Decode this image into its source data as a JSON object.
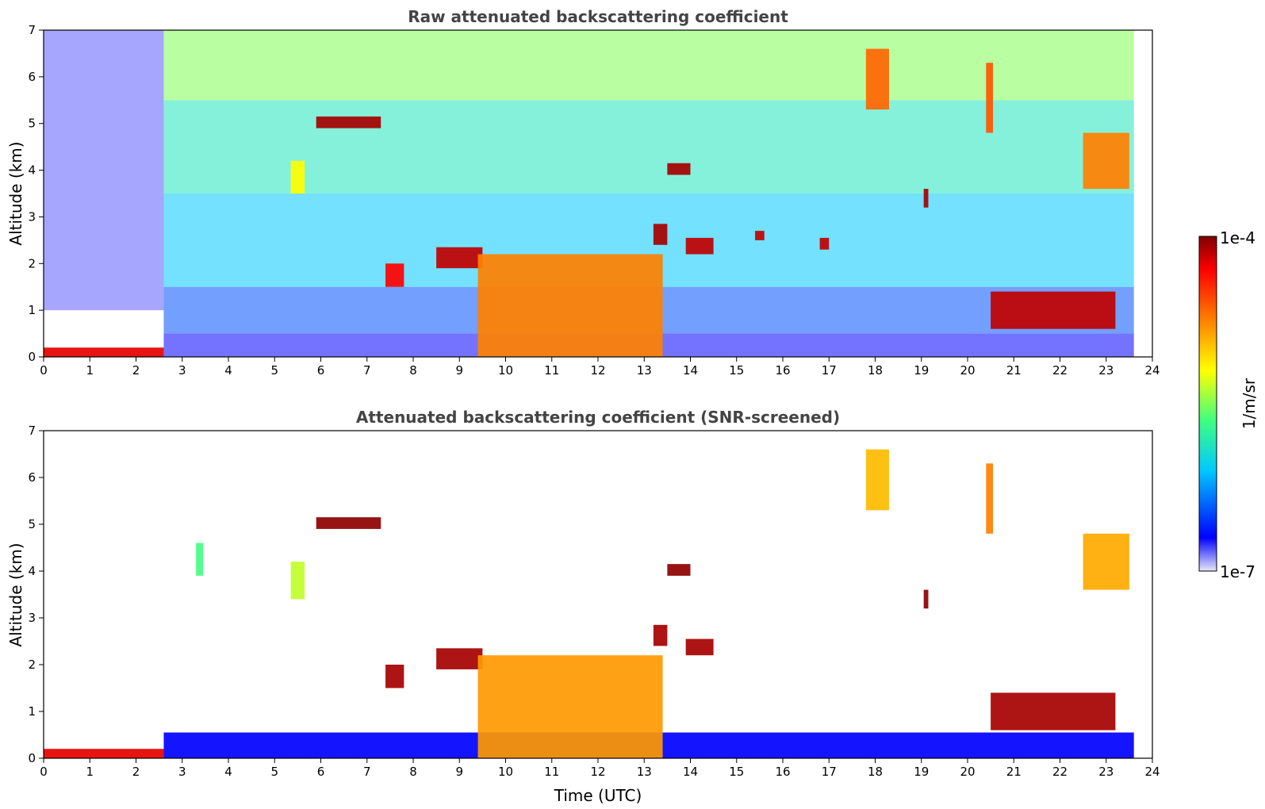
{
  "chart_data": [
    {
      "type": "heatmap",
      "title": "Raw attenuated backscattering coefficient",
      "xlabel": "",
      "ylabel": "Altitude (km)",
      "xlim": [
        0,
        24
      ],
      "ylim": [
        0,
        7
      ],
      "x_ticks": [
        0,
        1,
        2,
        3,
        4,
        5,
        6,
        7,
        8,
        9,
        10,
        11,
        12,
        13,
        14,
        15,
        16,
        17,
        18,
        19,
        20,
        21,
        22,
        23,
        24
      ],
      "y_ticks": [
        0,
        1,
        2,
        3,
        4,
        5,
        6,
        7
      ],
      "features": [
        {
          "t0": 0.0,
          "t1": 2.6,
          "z0": 0.0,
          "z1": 0.2,
          "level": 0.92
        },
        {
          "t0": 5.9,
          "t1": 7.3,
          "z0": 4.9,
          "z1": 5.15,
          "level": 0.97
        },
        {
          "t0": 5.35,
          "t1": 5.65,
          "z0": 3.5,
          "z1": 4.2,
          "level": 0.6
        },
        {
          "t0": 7.4,
          "t1": 7.8,
          "z0": 1.5,
          "z1": 2.0,
          "level": 0.9
        },
        {
          "t0": 8.5,
          "t1": 9.5,
          "z0": 1.9,
          "z1": 2.35,
          "level": 0.95
        },
        {
          "t0": 9.4,
          "t1": 13.4,
          "z0": 0.0,
          "z1": 2.2,
          "level": 0.75
        },
        {
          "t0": 13.2,
          "t1": 13.5,
          "z0": 2.4,
          "z1": 2.85,
          "level": 0.97
        },
        {
          "t0": 13.5,
          "t1": 14.0,
          "z0": 3.9,
          "z1": 4.15,
          "level": 0.97
        },
        {
          "t0": 13.9,
          "t1": 14.5,
          "z0": 2.2,
          "z1": 2.55,
          "level": 0.95
        },
        {
          "t0": 15.4,
          "t1": 15.6,
          "z0": 2.5,
          "z1": 2.7,
          "level": 0.95
        },
        {
          "t0": 16.8,
          "t1": 17.0,
          "z0": 2.3,
          "z1": 2.55,
          "level": 0.95
        },
        {
          "t0": 17.8,
          "t1": 18.3,
          "z0": 5.3,
          "z1": 6.6,
          "level": 0.78
        },
        {
          "t0": 19.05,
          "t1": 19.15,
          "z0": 3.2,
          "z1": 3.6,
          "level": 0.97
        },
        {
          "t0": 20.4,
          "t1": 20.55,
          "z0": 4.8,
          "z1": 6.3,
          "level": 0.8
        },
        {
          "t0": 20.5,
          "t1": 23.2,
          "z0": 0.6,
          "z1": 1.4,
          "level": 0.95
        },
        {
          "t0": 22.5,
          "t1": 23.5,
          "z0": 3.6,
          "z1": 4.8,
          "level": 0.75
        }
      ]
    },
    {
      "type": "heatmap",
      "title": "Attenuated backscattering coefficient (SNR-screened)",
      "xlabel": "Time (UTC)",
      "ylabel": "Altitude (km)",
      "xlim": [
        0,
        24
      ],
      "ylim": [
        0,
        7
      ],
      "x_ticks": [
        0,
        1,
        2,
        3,
        4,
        5,
        6,
        7,
        8,
        9,
        10,
        11,
        12,
        13,
        14,
        15,
        16,
        17,
        18,
        19,
        20,
        21,
        22,
        23,
        24
      ],
      "y_ticks": [
        0,
        1,
        2,
        3,
        4,
        5,
        6,
        7
      ],
      "features": [
        {
          "t0": 0.0,
          "t1": 2.6,
          "z0": 0.0,
          "z1": 0.2,
          "level": 0.92
        },
        {
          "t0": 2.6,
          "t1": 23.6,
          "z0": 0.0,
          "z1": 0.55,
          "level": 0.1
        },
        {
          "t0": 5.9,
          "t1": 7.3,
          "z0": 4.9,
          "z1": 5.15,
          "level": 0.99
        },
        {
          "t0": 3.3,
          "t1": 3.45,
          "z0": 3.9,
          "z1": 4.6,
          "level": 0.45
        },
        {
          "t0": 5.35,
          "t1": 5.65,
          "z0": 3.4,
          "z1": 4.2,
          "level": 0.55
        },
        {
          "t0": 7.4,
          "t1": 7.8,
          "z0": 1.5,
          "z1": 2.0,
          "level": 0.97
        },
        {
          "t0": 8.5,
          "t1": 9.5,
          "z0": 1.9,
          "z1": 2.35,
          "level": 0.97
        },
        {
          "t0": 9.4,
          "t1": 13.4,
          "z0": 0.0,
          "z1": 2.2,
          "level": 0.72
        },
        {
          "t0": 13.2,
          "t1": 13.5,
          "z0": 2.4,
          "z1": 2.85,
          "level": 0.97
        },
        {
          "t0": 13.5,
          "t1": 14.0,
          "z0": 3.9,
          "z1": 4.15,
          "level": 0.99
        },
        {
          "t0": 13.9,
          "t1": 14.5,
          "z0": 2.2,
          "z1": 2.55,
          "level": 0.97
        },
        {
          "t0": 17.8,
          "t1": 18.3,
          "z0": 5.3,
          "z1": 6.6,
          "level": 0.68
        },
        {
          "t0": 19.05,
          "t1": 19.15,
          "z0": 3.2,
          "z1": 3.6,
          "level": 0.99
        },
        {
          "t0": 20.4,
          "t1": 20.55,
          "z0": 4.8,
          "z1": 6.3,
          "level": 0.75
        },
        {
          "t0": 20.5,
          "t1": 23.2,
          "z0": 0.6,
          "z1": 1.4,
          "level": 0.97
        },
        {
          "t0": 22.5,
          "t1": 23.5,
          "z0": 3.6,
          "z1": 4.8,
          "level": 0.7
        }
      ]
    }
  ],
  "colorbar": {
    "label": "1/m/sr",
    "max_label": "1e-4",
    "min_label": "1e-7",
    "stops": [
      "#e8e8f8",
      "#0000ff",
      "#00c8ff",
      "#40ff80",
      "#ffff00",
      "#ff8000",
      "#ff0000",
      "#800000"
    ]
  }
}
